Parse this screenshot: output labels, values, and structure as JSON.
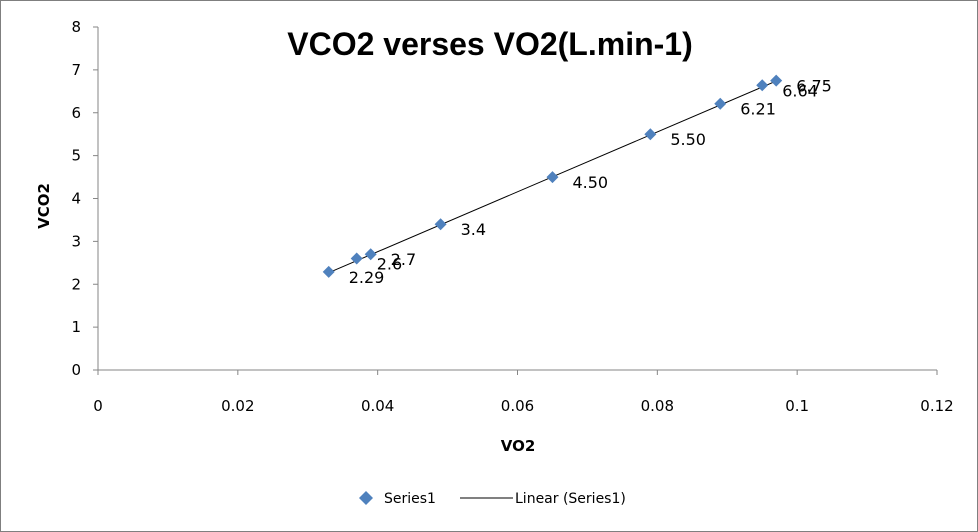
{
  "chart_data": {
    "type": "scatter",
    "title": "VCO2 verses VO2(L.min-1)",
    "xlabel": "VO2",
    "ylabel": "VCO2",
    "xlim": [
      0,
      0.12
    ],
    "ylim": [
      0,
      8
    ],
    "xticks": [
      "0",
      "0.02",
      "0.04",
      "0.06",
      "0.08",
      "0.1",
      "0.12"
    ],
    "yticks": [
      "0",
      "1",
      "2",
      "3",
      "4",
      "5",
      "6",
      "7",
      "8"
    ],
    "grid": false,
    "legend_position": "bottom",
    "series": [
      {
        "name": "Series1",
        "color": "#4f81bd",
        "marker": "diamond",
        "points": [
          {
            "x": 0.033,
            "y": 2.29,
            "label": "2.29"
          },
          {
            "x": 0.037,
            "y": 2.6,
            "label": "2.6"
          },
          {
            "x": 0.039,
            "y": 2.7,
            "label": "2.7"
          },
          {
            "x": 0.049,
            "y": 3.4,
            "label": "3.4"
          },
          {
            "x": 0.065,
            "y": 4.5,
            "label": "4.50"
          },
          {
            "x": 0.079,
            "y": 5.5,
            "label": "5.50"
          },
          {
            "x": 0.089,
            "y": 6.21,
            "label": "6.21"
          },
          {
            "x": 0.095,
            "y": 6.64,
            "label": "6.64"
          },
          {
            "x": 0.097,
            "y": 6.75,
            "label": "6.75"
          }
        ]
      }
    ],
    "trendline": {
      "name": "Linear (Series1)",
      "type": "linear",
      "color": "#000000",
      "from": {
        "x": 0.033,
        "y": 2.27
      },
      "to": {
        "x": 0.097,
        "y": 6.74
      }
    }
  },
  "legend": {
    "series_label": "Series1",
    "trend_label": "Linear (Series1)"
  }
}
